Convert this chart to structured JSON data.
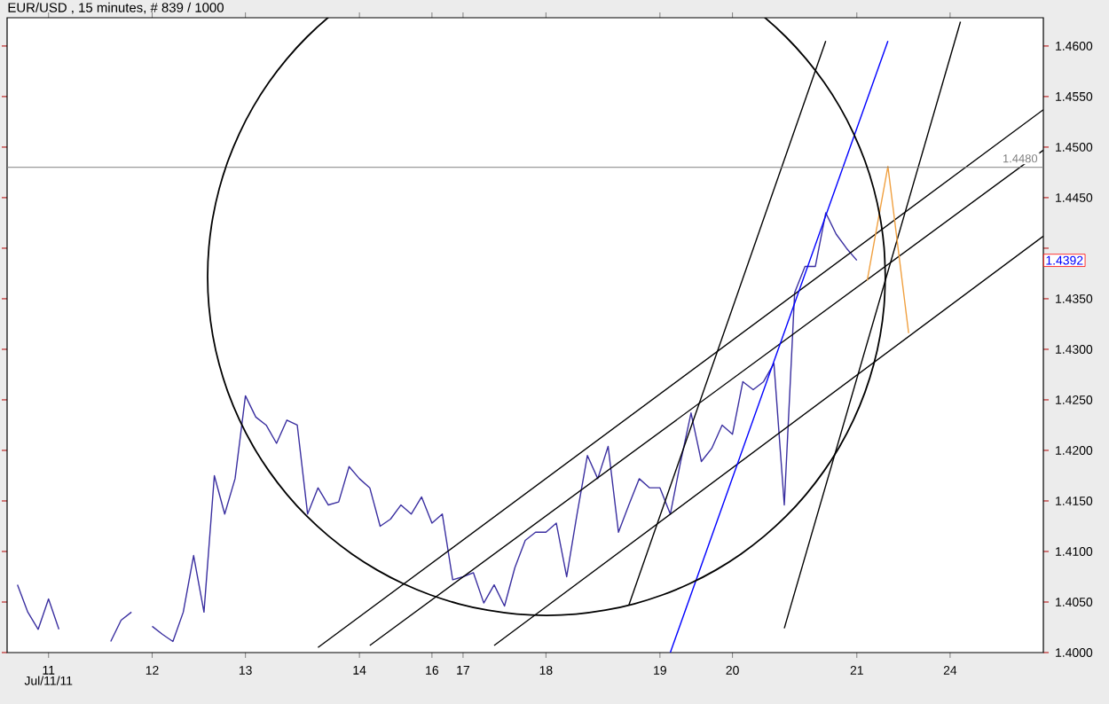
{
  "chart_data": {
    "type": "line",
    "title": "EUR/USD , 15 minutes, # 839 / 1000",
    "marker": "none",
    "categories": [
      null,
      null,
      null,
      null,
      "11",
      null,
      null,
      null,
      null,
      null,
      null,
      null,
      null,
      null,
      "12",
      null,
      null,
      null,
      null,
      null,
      null,
      null,
      null,
      "13",
      null,
      null,
      null,
      null,
      null,
      null,
      null,
      null,
      null,
      null,
      "14",
      null,
      null,
      null,
      null,
      null,
      null,
      "16",
      null,
      null,
      "17",
      null,
      null,
      null,
      null,
      null,
      null,
      null,
      "18",
      null,
      null,
      null,
      null,
      null,
      null,
      null,
      null,
      null,
      null,
      "19",
      null,
      null,
      null,
      null,
      null,
      null,
      "20",
      null,
      null,
      null,
      null,
      null,
      null,
      null,
      null,
      null,
      null,
      null,
      "21",
      null,
      null,
      null,
      null,
      null,
      null,
      null,
      null,
      "24",
      null,
      null,
      null,
      null,
      null,
      null,
      null,
      null,
      null
    ],
    "ylim": [
      1.4,
      1.4628
    ],
    "yticks": [
      {
        "value": 1.4,
        "label": "1.4000"
      },
      {
        "value": 1.405,
        "label": "1.4050"
      },
      {
        "value": 1.41,
        "label": "1.4100"
      },
      {
        "value": 1.415,
        "label": "1.4150"
      },
      {
        "value": 1.42,
        "label": "1.4200"
      },
      {
        "value": 1.425,
        "label": "1.4250"
      },
      {
        "value": 1.43,
        "label": "1.4300"
      },
      {
        "value": 1.435,
        "label": "1.4350"
      },
      {
        "value": 1.44,
        "label": null
      },
      {
        "value": 1.445,
        "label": "1.4450"
      },
      {
        "value": 1.45,
        "label": "1.4500"
      },
      {
        "value": 1.455,
        "label": "1.4550"
      },
      {
        "value": 1.46,
        "label": "1.4600"
      }
    ],
    "ref_lines": [
      {
        "axis": "y",
        "value": 1.448,
        "label": "1.4480",
        "color": "#808080"
      }
    ],
    "annotations": [
      "Jul/11/11",
      "1.4392"
    ],
    "series": [
      {
        "color": "#3a2fa0",
        "values": [
          null,
          null,
          null,
          null,
          null,
          null,
          null,
          null,
          null,
          null,
          null,
          null,
          null,
          null,
          1.4026,
          1.4018,
          1.4011,
          1.404,
          1.4096,
          1.404,
          1.4175,
          1.4137,
          1.4172,
          1.4254,
          1.4233,
          1.4225,
          1.4207,
          1.423,
          1.4225,
          1.4137,
          1.4163,
          1.4146,
          1.4149,
          1.4184,
          1.4172,
          1.4163,
          1.4125,
          1.4132,
          1.4146,
          1.4137,
          1.4154,
          1.4128,
          1.4137,
          1.4072,
          1.4075,
          1.4079,
          1.4049,
          1.4067,
          1.4046,
          1.4084,
          1.4111,
          1.4119,
          1.4119,
          1.4128,
          1.4075,
          1.4137,
          1.4195,
          1.4172,
          1.4204,
          1.4119,
          1.4146,
          1.4172,
          1.4163,
          1.4163,
          1.4137,
          1.4189,
          1.4237,
          1.4189,
          1.4202,
          1.4225,
          1.4216,
          1.4268,
          1.426,
          1.4268,
          1.4286,
          1.4146,
          1.4356,
          1.4382,
          1.4382,
          1.4435,
          1.4414,
          1.44,
          1.4388,
          null,
          null,
          null,
          null,
          null,
          null,
          null,
          null,
          null,
          null,
          null,
          null,
          null,
          null,
          null,
          null,
          null,
          null
        ]
      },
      {
        "color": "#3a2fa0",
        "values": [
          null,
          1.4067,
          1.404,
          1.4023,
          1.4053,
          1.4023,
          null,
          null,
          null,
          null,
          null,
          null,
          null,
          null,
          null,
          null,
          null,
          null,
          null,
          null,
          null,
          null,
          null,
          null,
          null,
          null,
          null,
          null,
          null,
          null,
          null,
          null,
          null,
          null,
          null,
          null,
          null,
          null,
          null,
          null,
          null,
          null,
          null,
          null,
          null,
          null,
          null,
          null,
          null,
          null,
          null,
          null,
          null,
          null,
          null,
          null,
          null,
          null,
          null,
          null,
          null,
          null,
          null,
          null,
          null,
          null,
          null,
          null,
          null,
          null,
          null,
          null,
          null,
          null,
          null,
          null,
          null,
          null,
          null,
          null,
          null,
          null,
          null,
          null,
          null,
          null,
          null,
          null,
          null,
          null,
          null,
          null,
          null,
          null,
          null,
          null,
          null,
          null,
          null,
          null,
          null
        ]
      },
      {
        "color": "#3a2fa0",
        "values": [
          null,
          null,
          null,
          null,
          null,
          null,
          null,
          null,
          null,
          null,
          1.4011,
          1.4032,
          1.404,
          null,
          null,
          null,
          null,
          null,
          null,
          null,
          null,
          null,
          null,
          null,
          null,
          null,
          null,
          null,
          null,
          null,
          null,
          null,
          null,
          null,
          null,
          null,
          null,
          null,
          null,
          null,
          null,
          null,
          null,
          null,
          null,
          null,
          null,
          null,
          null,
          null,
          null,
          null,
          null,
          null,
          null,
          null,
          null,
          null,
          null,
          null,
          null,
          null,
          null,
          null,
          null,
          null,
          null,
          null,
          null,
          null,
          null,
          null,
          null,
          null,
          null,
          null,
          null,
          null,
          null,
          null,
          null,
          null,
          null,
          null,
          null,
          null,
          null,
          null,
          null,
          null,
          null,
          null,
          null,
          null,
          null,
          null,
          null,
          null,
          null,
          null,
          null
        ]
      },
      {
        "color": "#000000",
        "values": [
          null,
          null,
          null,
          null,
          null,
          null,
          null,
          null,
          null,
          null,
          null,
          null,
          null,
          null,
          null,
          null,
          null,
          null,
          null,
          null,
          null,
          null,
          null,
          null,
          null,
          null,
          null,
          null,
          null,
          null,
          1.4005,
          null,
          null,
          null,
          null,
          null,
          null,
          null,
          null,
          null,
          null,
          null,
          null,
          null,
          null,
          null,
          null,
          null,
          null,
          null,
          null,
          null,
          null,
          null,
          null,
          null,
          null,
          null,
          null,
          null,
          null,
          null,
          null,
          null,
          null,
          null,
          null,
          null,
          null,
          null,
          null,
          null,
          null,
          null,
          null,
          null,
          null,
          null,
          null,
          null,
          null,
          null,
          null,
          null,
          null,
          null,
          null,
          null,
          null,
          null,
          null,
          null,
          null,
          null,
          null,
          null,
          null,
          null,
          null,
          null,
          1.4537
        ]
      },
      {
        "color": "#000000",
        "values": [
          null,
          null,
          null,
          null,
          null,
          null,
          null,
          null,
          null,
          null,
          null,
          null,
          null,
          null,
          null,
          null,
          null,
          null,
          null,
          null,
          null,
          null,
          null,
          null,
          null,
          null,
          null,
          null,
          null,
          null,
          null,
          null,
          null,
          null,
          null,
          1.4007,
          null,
          null,
          null,
          null,
          null,
          null,
          null,
          null,
          null,
          null,
          null,
          null,
          null,
          null,
          null,
          null,
          null,
          null,
          null,
          null,
          null,
          null,
          null,
          null,
          null,
          null,
          null,
          null,
          null,
          null,
          null,
          null,
          null,
          null,
          null,
          null,
          null,
          null,
          null,
          null,
          null,
          null,
          null,
          null,
          null,
          null,
          null,
          null,
          null,
          null,
          null,
          null,
          null,
          null,
          null,
          null,
          null,
          null,
          null,
          null,
          null,
          null,
          null,
          null,
          1.4497
        ]
      },
      {
        "color": "#000000",
        "values": [
          null,
          null,
          null,
          null,
          null,
          null,
          null,
          null,
          null,
          null,
          null,
          null,
          null,
          null,
          null,
          null,
          null,
          null,
          null,
          null,
          null,
          null,
          null,
          null,
          null,
          null,
          null,
          null,
          null,
          null,
          null,
          null,
          null,
          null,
          null,
          null,
          null,
          null,
          null,
          null,
          null,
          null,
          null,
          null,
          null,
          null,
          null,
          1.4007,
          null,
          null,
          null,
          null,
          null,
          null,
          null,
          null,
          null,
          null,
          null,
          null,
          null,
          null,
          null,
          null,
          null,
          null,
          null,
          null,
          null,
          null,
          null,
          null,
          null,
          null,
          null,
          null,
          null,
          null,
          null,
          null,
          null,
          null,
          null,
          null,
          null,
          null,
          null,
          null,
          null,
          null,
          null,
          null,
          null,
          null,
          null,
          null,
          null,
          null,
          null,
          null,
          1.4412
        ]
      },
      {
        "color": "#000000",
        "values": [
          null,
          null,
          null,
          null,
          null,
          null,
          null,
          null,
          null,
          null,
          null,
          null,
          null,
          null,
          null,
          null,
          null,
          null,
          null,
          null,
          null,
          null,
          null,
          null,
          null,
          null,
          null,
          null,
          null,
          null,
          null,
          null,
          null,
          null,
          null,
          null,
          null,
          null,
          null,
          null,
          null,
          null,
          null,
          null,
          null,
          null,
          null,
          null,
          null,
          null,
          null,
          null,
          null,
          null,
          null,
          null,
          null,
          null,
          null,
          null,
          1.4047,
          null,
          null,
          null,
          null,
          null,
          null,
          null,
          null,
          null,
          null,
          null,
          null,
          null,
          null,
          null,
          null,
          null,
          null,
          1.4605,
          null,
          null,
          null,
          null,
          null,
          null,
          null,
          null,
          null,
          null,
          null,
          null,
          null,
          null,
          null,
          null,
          null,
          null,
          null,
          null,
          null
        ]
      },
      {
        "color": "#000000",
        "values": [
          null,
          null,
          null,
          null,
          null,
          null,
          null,
          null,
          null,
          null,
          null,
          null,
          null,
          null,
          null,
          null,
          null,
          null,
          null,
          null,
          null,
          null,
          null,
          null,
          null,
          null,
          null,
          null,
          null,
          null,
          null,
          null,
          null,
          null,
          null,
          null,
          null,
          null,
          null,
          null,
          null,
          null,
          null,
          null,
          null,
          null,
          null,
          null,
          null,
          null,
          null,
          null,
          null,
          null,
          null,
          null,
          null,
          null,
          null,
          null,
          null,
          null,
          null,
          null,
          null,
          null,
          null,
          null,
          null,
          null,
          null,
          null,
          null,
          null,
          null,
          1.4024,
          null,
          null,
          null,
          null,
          null,
          null,
          null,
          null,
          null,
          null,
          null,
          null,
          null,
          null,
          null,
          null,
          1.4624,
          null,
          null,
          null,
          null,
          null,
          null,
          null,
          null
        ]
      },
      {
        "color": "#0000ff",
        "values": [
          null,
          null,
          null,
          null,
          null,
          null,
          null,
          null,
          null,
          null,
          null,
          null,
          null,
          null,
          null,
          null,
          null,
          null,
          null,
          null,
          null,
          null,
          null,
          null,
          null,
          null,
          null,
          null,
          null,
          null,
          null,
          null,
          null,
          null,
          null,
          null,
          null,
          null,
          null,
          null,
          null,
          null,
          null,
          null,
          null,
          null,
          null,
          null,
          null,
          null,
          null,
          null,
          null,
          null,
          null,
          null,
          null,
          null,
          null,
          null,
          null,
          null,
          null,
          null,
          1.4,
          null,
          null,
          null,
          null,
          null,
          null,
          null,
          null,
          null,
          null,
          null,
          null,
          null,
          null,
          null,
          null,
          null,
          null,
          null,
          null,
          1.4605,
          null,
          null,
          null,
          null,
          null,
          null,
          null,
          null,
          null,
          null,
          null,
          null,
          null,
          null,
          null
        ]
      },
      {
        "color": "#f0a040",
        "values": [
          null,
          null,
          null,
          null,
          null,
          null,
          null,
          null,
          null,
          null,
          null,
          null,
          null,
          null,
          null,
          null,
          null,
          null,
          null,
          null,
          null,
          null,
          null,
          null,
          null,
          null,
          null,
          null,
          null,
          null,
          null,
          null,
          null,
          null,
          null,
          null,
          null,
          null,
          null,
          null,
          null,
          null,
          null,
          null,
          null,
          null,
          null,
          null,
          null,
          null,
          null,
          null,
          null,
          null,
          null,
          null,
          null,
          null,
          null,
          null,
          null,
          null,
          null,
          null,
          null,
          null,
          null,
          null,
          null,
          null,
          null,
          null,
          null,
          null,
          null,
          null,
          null,
          null,
          null,
          null,
          null,
          null,
          null,
          1.4368,
          null,
          1.4481,
          null,
          1.4316,
          null,
          null,
          null,
          null,
          null,
          null,
          null,
          null,
          null,
          null,
          null,
          null,
          null
        ]
      }
    ]
  }
}
